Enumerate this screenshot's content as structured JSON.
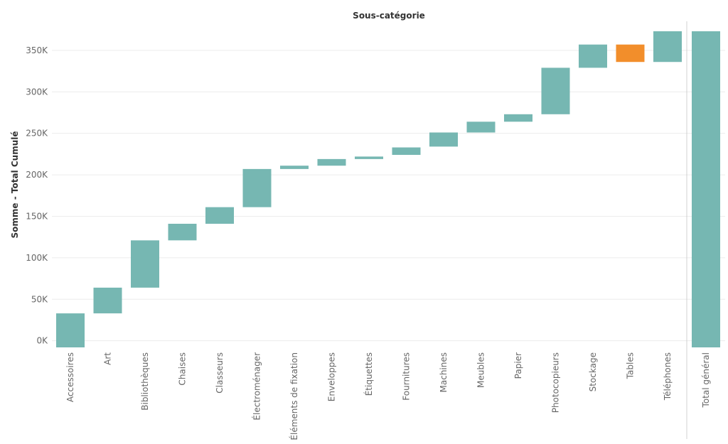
{
  "chart_data": {
    "type": "bar",
    "subtype": "waterfall",
    "title": "Sous-catégorie",
    "ylabel": "Somme - Total Cumulé",
    "ylim": [
      -8000,
      385000
    ],
    "yticks": [
      0,
      50000,
      100000,
      150000,
      200000,
      250000,
      300000,
      350000
    ],
    "ytick_labels": [
      "0K",
      "50K",
      "100K",
      "150K",
      "200K",
      "250K",
      "300K",
      "350K"
    ],
    "categories": [
      "Accessoires",
      "Art",
      "Bibliothèques",
      "Chaises",
      "Classeurs",
      "Électroménager",
      "Éléments de fixation",
      "Enveloppes",
      "Étiquettes",
      "Fournitures",
      "Machines",
      "Meubles",
      "Papier",
      "Photocopieurs",
      "Stockage",
      "Tables",
      "Téléphones"
    ],
    "start_values": [
      -8000,
      33000,
      64000,
      121000,
      141000,
      161000,
      207000,
      211000,
      219000,
      224000,
      234000,
      251000,
      264000,
      273000,
      329000,
      336000,
      336000
    ],
    "end_values": [
      33000,
      64000,
      121000,
      141000,
      161000,
      207000,
      211000,
      219000,
      222000,
      233000,
      251000,
      264000,
      273000,
      329000,
      357000,
      357000,
      373000
    ],
    "total": {
      "label": "Total général",
      "value": 373000
    },
    "grid": true,
    "colors": {
      "positive": "#76b7b2",
      "negative": "#f28e2b",
      "gridline": "#ececec",
      "separator": "#d0d0d0"
    },
    "negative_categories": [
      "Tables"
    ]
  }
}
